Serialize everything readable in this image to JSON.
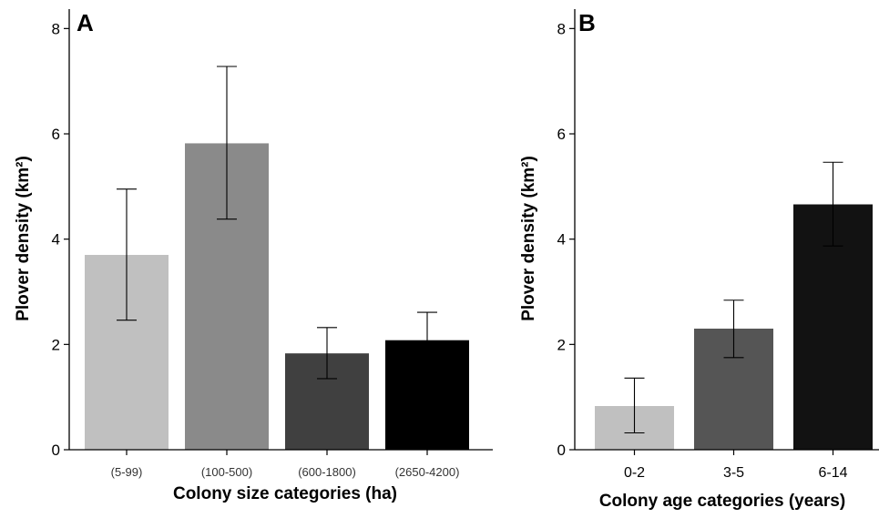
{
  "chart_data": [
    {
      "type": "bar",
      "panel_label": "A",
      "categories": [
        "(5-99)",
        "(100-500)",
        "(600-1800)",
        "(2650-4200)"
      ],
      "values": [
        3.7,
        5.82,
        1.83,
        2.08
      ],
      "error_low": [
        2.46,
        4.38,
        1.35,
        1.6
      ],
      "error_high": [
        4.95,
        7.28,
        2.32,
        2.61
      ],
      "colors": [
        "#c0c0c0",
        "#8a8a8a",
        "#404040",
        "#000000"
      ],
      "xlabel": "Colony size categories (ha)",
      "ylabel": "Plover density (km²)",
      "yticks": [
        "0",
        "2",
        "4",
        "6",
        "8"
      ],
      "ylim": [
        0,
        8.3
      ],
      "grid": false
    },
    {
      "type": "bar",
      "panel_label": "B",
      "categories": [
        "0-2",
        "3-5",
        "6-14"
      ],
      "values": [
        0.83,
        2.3,
        4.66
      ],
      "error_low": [
        0.32,
        1.75,
        3.87
      ],
      "error_high": [
        1.36,
        2.84,
        5.46
      ],
      "colors": [
        "#c0c0c0",
        "#555555",
        "#121212"
      ],
      "xlabel": "Colony age categories (years)",
      "ylabel": "Plover density (km²)",
      "yticks": [
        "0",
        "2",
        "4",
        "6",
        "8"
      ],
      "ylim": [
        0,
        8.3
      ],
      "grid": false
    }
  ]
}
